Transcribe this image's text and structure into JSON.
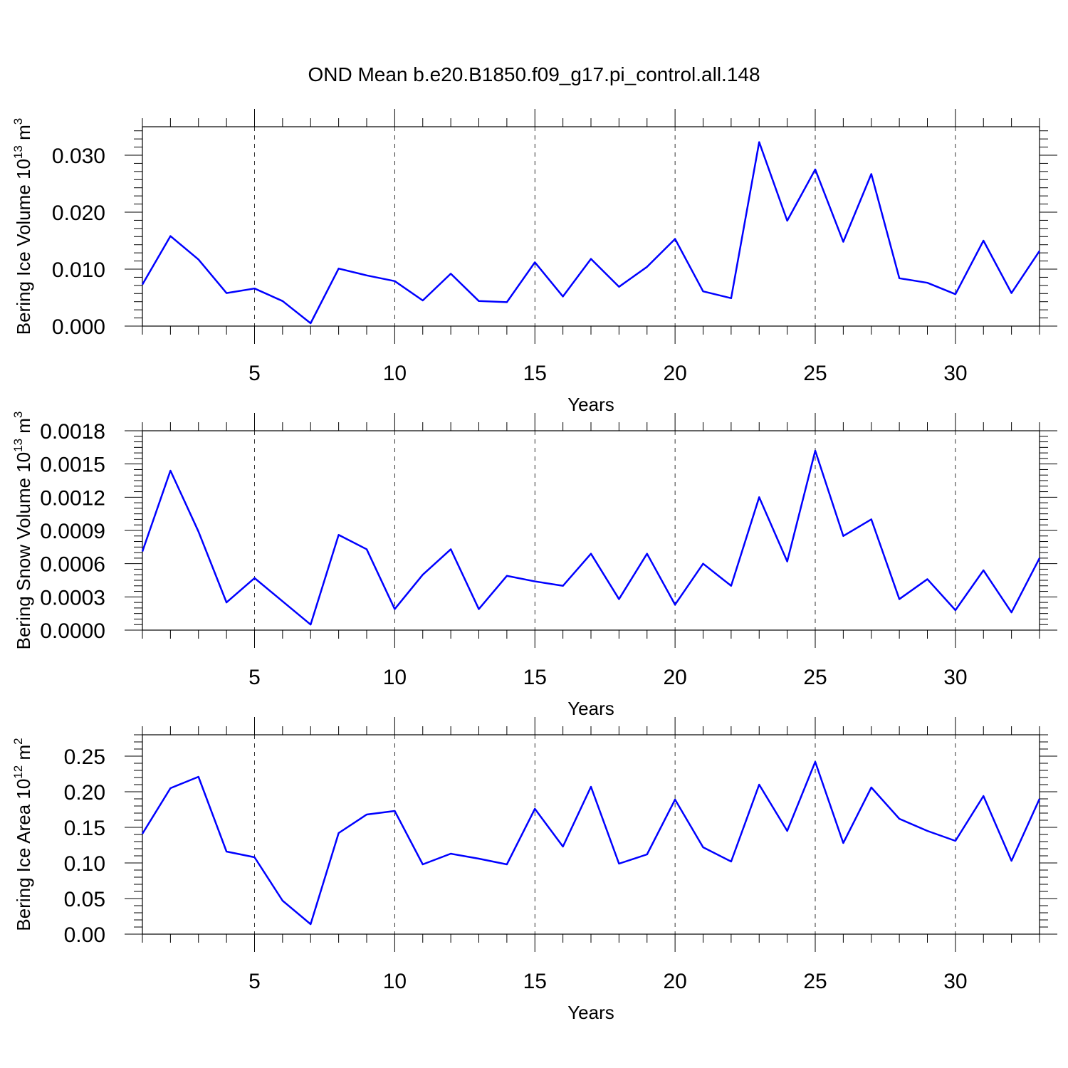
{
  "title": "OND Mean b.e20.B1850.f09_g17.pi_control.all.148",
  "line_color": "#0000ff",
  "chart_data": [
    {
      "type": "line",
      "title": "",
      "xlabel": "Years",
      "ylabel_text": "Bering Ice Volume 10",
      "ylabel_exp": "13",
      "ylabel_unit": " m",
      "ylabel_unit_exp": "3",
      "xlim": [
        1,
        33
      ],
      "ylim": [
        0,
        0.035
      ],
      "x_ticks": [
        "5",
        "10",
        "15",
        "20",
        "25",
        "30"
      ],
      "y_ticks": [
        "0.000",
        "0.010",
        "0.020",
        "0.030"
      ],
      "x": [
        1,
        2,
        3,
        4,
        5,
        6,
        7,
        8,
        9,
        10,
        11,
        12,
        13,
        14,
        15,
        16,
        17,
        18,
        19,
        20,
        21,
        22,
        23,
        24,
        25,
        26,
        27,
        28,
        29,
        30,
        31,
        32,
        33
      ],
      "values": [
        0.0073,
        0.0158,
        0.0117,
        0.0058,
        0.0066,
        0.0044,
        0.0005,
        0.0101,
        0.0089,
        0.0079,
        0.0045,
        0.0092,
        0.0044,
        0.0042,
        0.0112,
        0.0052,
        0.0118,
        0.0069,
        0.0104,
        0.0153,
        0.0061,
        0.0049,
        0.0323,
        0.0185,
        0.0275,
        0.0148,
        0.0267,
        0.0084,
        0.0076,
        0.0056,
        0.015,
        0.0058,
        0.0132
      ]
    },
    {
      "type": "line",
      "title": "",
      "xlabel": "Years",
      "ylabel_text": "Bering Snow Volume 10",
      "ylabel_exp": "13",
      "ylabel_unit": " m",
      "ylabel_unit_exp": "3",
      "xlim": [
        1,
        33
      ],
      "ylim": [
        0,
        0.0018
      ],
      "x_ticks": [
        "5",
        "10",
        "15",
        "20",
        "25",
        "30"
      ],
      "y_ticks": [
        "0.0000",
        "0.0003",
        "0.0006",
        "0.0009",
        "0.0012",
        "0.0015",
        "0.0018"
      ],
      "x": [
        1,
        2,
        3,
        4,
        5,
        6,
        7,
        8,
        9,
        10,
        11,
        12,
        13,
        14,
        15,
        16,
        17,
        18,
        19,
        20,
        21,
        22,
        23,
        24,
        25,
        26,
        27,
        28,
        29,
        30,
        31,
        32,
        33
      ],
      "values": [
        0.00071,
        0.00144,
        0.00089,
        0.00025,
        0.00047,
        0.00026,
        5e-05,
        0.00086,
        0.00073,
        0.00019,
        0.0005,
        0.00073,
        0.00019,
        0.00049,
        0.00044,
        0.0004,
        0.00069,
        0.00028,
        0.00069,
        0.00023,
        0.0006,
        0.0004,
        0.0012,
        0.00062,
        0.00162,
        0.00085,
        0.001,
        0.00028,
        0.00046,
        0.00018,
        0.00054,
        0.00016,
        0.00065
      ]
    },
    {
      "type": "line",
      "title": "",
      "xlabel": "Years",
      "ylabel_text": "Bering Ice Area 10",
      "ylabel_exp": "12",
      "ylabel_unit": " m",
      "ylabel_unit_exp": "2",
      "xlim": [
        1,
        33
      ],
      "ylim": [
        0,
        0.28
      ],
      "x_ticks": [
        "5",
        "10",
        "15",
        "20",
        "25",
        "30"
      ],
      "y_ticks": [
        "0.00",
        "0.05",
        "0.10",
        "0.15",
        "0.20",
        "0.25"
      ],
      "x": [
        1,
        2,
        3,
        4,
        5,
        6,
        7,
        8,
        9,
        10,
        11,
        12,
        13,
        14,
        15,
        16,
        17,
        18,
        19,
        20,
        21,
        22,
        23,
        24,
        25,
        26,
        27,
        28,
        29,
        30,
        31,
        32,
        33
      ],
      "values": [
        0.141,
        0.205,
        0.221,
        0.116,
        0.108,
        0.047,
        0.014,
        0.142,
        0.168,
        0.173,
        0.098,
        0.113,
        0.106,
        0.098,
        0.176,
        0.123,
        0.207,
        0.099,
        0.112,
        0.189,
        0.122,
        0.102,
        0.21,
        0.145,
        0.242,
        0.128,
        0.206,
        0.162,
        0.145,
        0.131,
        0.194,
        0.103,
        0.19
      ]
    }
  ]
}
